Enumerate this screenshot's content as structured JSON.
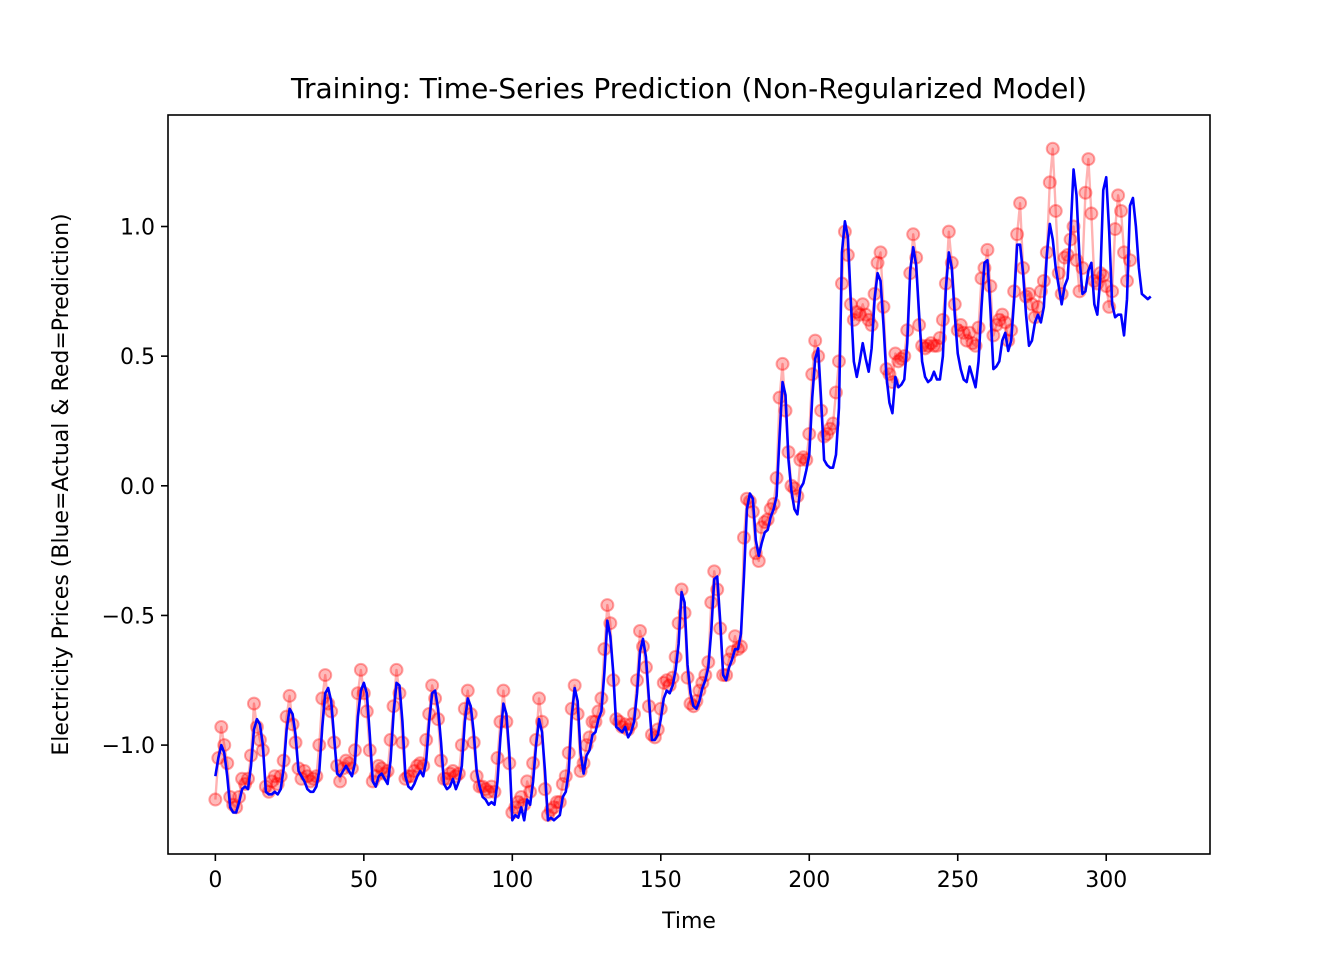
{
  "chart_data": {
    "type": "line",
    "title": "Training: Time-Series Prediction (Non-Regularized Model)",
    "xlabel": "Time",
    "ylabel": "Electricity Prices (Blue=Actual & Red=Prediction)",
    "xlim": [
      -15.95,
      334.95
    ],
    "ylim": [
      -1.42,
      1.43
    ],
    "xticks": [
      0,
      50,
      100,
      150,
      200,
      250,
      300
    ],
    "xtick_labels": [
      "0",
      "50",
      "100",
      "150",
      "200",
      "250",
      "300"
    ],
    "yticks": [
      -1.0,
      -0.5,
      0.0,
      0.5,
      1.0
    ],
    "ytick_labels": [
      "−1.0",
      "−0.5",
      "0.0",
      "0.5",
      "1.0"
    ],
    "grid": false,
    "series": [
      {
        "role": "actual",
        "style": "line",
        "color": "#0000ff",
        "x_start": 0,
        "values": [
          -1.12,
          -1.05,
          -1.0,
          -1.03,
          -1.12,
          -1.24,
          -1.26,
          -1.26,
          -1.22,
          -1.17,
          -1.16,
          -1.17,
          -1.08,
          -0.94,
          -0.9,
          -0.92,
          -1.0,
          -1.18,
          -1.19,
          -1.19,
          -1.18,
          -1.19,
          -1.17,
          -1.09,
          -0.94,
          -0.86,
          -0.88,
          -0.96,
          -1.1,
          -1.12,
          -1.14,
          -1.17,
          -1.18,
          -1.18,
          -1.16,
          -1.1,
          -0.93,
          -0.8,
          -0.78,
          -0.83,
          -0.97,
          -1.11,
          -1.12,
          -1.1,
          -1.08,
          -1.1,
          -1.12,
          -1.07,
          -0.89,
          -0.79,
          -0.76,
          -0.8,
          -0.96,
          -1.14,
          -1.16,
          -1.12,
          -1.11,
          -1.13,
          -1.15,
          -1.06,
          -0.88,
          -0.76,
          -0.77,
          -0.91,
          -1.12,
          -1.16,
          -1.17,
          -1.15,
          -1.12,
          -1.1,
          -1.12,
          -1.06,
          -0.91,
          -0.8,
          -0.79,
          -0.86,
          -0.99,
          -1.15,
          -1.17,
          -1.16,
          -1.13,
          -1.17,
          -1.14,
          -1.08,
          -0.91,
          -0.82,
          -0.85,
          -0.95,
          -1.1,
          -1.16,
          -1.2,
          -1.21,
          -1.23,
          -1.22,
          -1.23,
          -1.14,
          -0.97,
          -0.84,
          -0.88,
          -1.03,
          -1.29,
          -1.27,
          -1.28,
          -1.24,
          -1.29,
          -1.21,
          -1.23,
          -1.14,
          -1.0,
          -0.9,
          -0.95,
          -1.1,
          -1.29,
          -1.28,
          -1.29,
          -1.28,
          -1.27,
          -1.2,
          -1.18,
          -1.1,
          -0.89,
          -0.78,
          -0.83,
          -1.03,
          -1.11,
          -1.04,
          -1.02,
          -0.96,
          -0.95,
          -0.9,
          -0.87,
          -0.72,
          -0.52,
          -0.58,
          -0.72,
          -0.93,
          -0.94,
          -0.95,
          -0.93,
          -0.97,
          -0.95,
          -0.91,
          -0.8,
          -0.64,
          -0.59,
          -0.66,
          -0.82,
          -0.98,
          -0.98,
          -0.96,
          -0.9,
          -0.82,
          -0.79,
          -0.8,
          -0.77,
          -0.71,
          -0.61,
          -0.41,
          -0.45,
          -0.69,
          -0.8,
          -0.85,
          -0.86,
          -0.83,
          -0.78,
          -0.75,
          -0.7,
          -0.56,
          -0.36,
          -0.35,
          -0.52,
          -0.73,
          -0.75,
          -0.7,
          -0.67,
          -0.63,
          -0.63,
          -0.57,
          -0.35,
          -0.09,
          -0.03,
          -0.05,
          -0.21,
          -0.27,
          -0.22,
          -0.18,
          -0.17,
          -0.12,
          -0.09,
          -0.04,
          0.19,
          0.4,
          0.35,
          0.1,
          -0.02,
          -0.09,
          -0.11,
          -0.01,
          0.01,
          0.06,
          0.12,
          0.34,
          0.49,
          0.53,
          0.33,
          0.1,
          0.08,
          0.07,
          0.07,
          0.12,
          0.3,
          0.9,
          1.02,
          0.96,
          0.71,
          0.48,
          0.42,
          0.48,
          0.55,
          0.49,
          0.44,
          0.53,
          0.72,
          0.82,
          0.79,
          0.62,
          0.42,
          0.32,
          0.28,
          0.42,
          0.38,
          0.39,
          0.41,
          0.55,
          0.83,
          0.92,
          0.85,
          0.66,
          0.48,
          0.42,
          0.4,
          0.41,
          0.44,
          0.41,
          0.41,
          0.5,
          0.76,
          0.9,
          0.84,
          0.66,
          0.51,
          0.45,
          0.41,
          0.4,
          0.46,
          0.42,
          0.38,
          0.48,
          0.69,
          0.86,
          0.87,
          0.68,
          0.45,
          0.46,
          0.48,
          0.56,
          0.59,
          0.52,
          0.56,
          0.72,
          0.93,
          0.93,
          0.82,
          0.66,
          0.54,
          0.56,
          0.63,
          0.66,
          0.63,
          0.69,
          0.89,
          1.01,
          0.95,
          0.84,
          0.77,
          0.7,
          0.77,
          0.8,
          0.98,
          1.22,
          1.12,
          0.88,
          0.74,
          0.75,
          0.83,
          0.86,
          0.7,
          0.66,
          0.8,
          1.14,
          1.19,
          0.98,
          0.7,
          0.65,
          0.66,
          0.66,
          0.58,
          0.72,
          1.08,
          1.11,
          1.0,
          0.84,
          0.74,
          0.73,
          0.72,
          0.73
        ]
      },
      {
        "role": "prediction",
        "style": "markers",
        "color": "#ff0000",
        "alpha": 0.3,
        "x_start": 0,
        "values": [
          -1.21,
          -1.05,
          -0.93,
          -1.0,
          -1.07,
          -1.2,
          -1.23,
          -1.24,
          -1.2,
          -1.13,
          -1.15,
          -1.13,
          -1.04,
          -0.84,
          -0.93,
          -0.98,
          -1.02,
          -1.16,
          -1.18,
          -1.14,
          -1.12,
          -1.15,
          -1.12,
          -1.06,
          -0.89,
          -0.81,
          -0.92,
          -0.99,
          -1.09,
          -1.13,
          -1.1,
          -1.12,
          -1.14,
          -1.13,
          -1.12,
          -1.0,
          -0.82,
          -0.73,
          -0.84,
          -0.87,
          -0.99,
          -1.08,
          -1.14,
          -1.09,
          -1.06,
          -1.07,
          -1.09,
          -1.02,
          -0.8,
          -0.71,
          -0.8,
          -0.87,
          -1.02,
          -1.14,
          -1.12,
          -1.08,
          -1.09,
          -1.11,
          -1.1,
          -0.98,
          -0.85,
          -0.71,
          -0.8,
          -0.99,
          -1.13,
          -1.12,
          -1.12,
          -1.1,
          -1.08,
          -1.07,
          -1.08,
          -0.98,
          -0.88,
          -0.77,
          -0.82,
          -0.9,
          -1.06,
          -1.13,
          -1.13,
          -1.11,
          -1.1,
          -1.12,
          -1.11,
          -1.0,
          -0.86,
          -0.79,
          -0.88,
          -0.99,
          -1.12,
          -1.16,
          -1.16,
          -1.17,
          -1.18,
          -1.16,
          -1.18,
          -1.05,
          -0.91,
          -0.79,
          -0.91,
          -1.07,
          -1.26,
          -1.24,
          -1.22,
          -1.2,
          -1.23,
          -1.14,
          -1.18,
          -1.07,
          -0.98,
          -0.82,
          -0.91,
          -1.17,
          -1.27,
          -1.25,
          -1.24,
          -1.22,
          -1.22,
          -1.15,
          -1.12,
          -1.03,
          -0.86,
          -0.77,
          -0.88,
          -1.1,
          -1.07,
          -1.0,
          -0.97,
          -0.91,
          -0.91,
          -0.87,
          -0.82,
          -0.63,
          -0.46,
          -0.53,
          -0.75,
          -0.9,
          -0.91,
          -0.93,
          -0.92,
          -0.94,
          -0.92,
          -0.88,
          -0.75,
          -0.56,
          -0.62,
          -0.7,
          -0.85,
          -0.96,
          -0.97,
          -0.94,
          -0.86,
          -0.76,
          -0.75,
          -0.77,
          -0.74,
          -0.66,
          -0.53,
          -0.4,
          -0.49,
          -0.74,
          -0.84,
          -0.85,
          -0.83,
          -0.79,
          -0.76,
          -0.73,
          -0.68,
          -0.45,
          -0.33,
          -0.4,
          -0.55,
          -0.73,
          -0.73,
          -0.67,
          -0.64,
          -0.58,
          -0.63,
          -0.62,
          -0.2,
          -0.05,
          -0.06,
          -0.1,
          -0.26,
          -0.29,
          -0.16,
          -0.14,
          -0.13,
          -0.09,
          -0.07,
          0.03,
          0.34,
          0.47,
          0.29,
          0.13,
          0.0,
          -0.01,
          -0.04,
          0.1,
          0.11,
          0.1,
          0.2,
          0.43,
          0.56,
          0.5,
          0.29,
          0.19,
          0.2,
          0.22,
          0.24,
          0.36,
          0.48,
          0.78,
          0.98,
          0.89,
          0.7,
          0.64,
          0.67,
          0.66,
          0.7,
          0.66,
          0.64,
          0.62,
          0.74,
          0.86,
          0.9,
          0.69,
          0.45,
          0.43,
          0.4,
          0.51,
          0.48,
          0.49,
          0.5,
          0.6,
          0.82,
          0.97,
          0.88,
          0.62,
          0.54,
          0.53,
          0.54,
          0.55,
          0.54,
          0.54,
          0.57,
          0.64,
          0.78,
          0.98,
          0.86,
          0.7,
          0.6,
          0.62,
          0.59,
          0.56,
          0.59,
          0.55,
          0.54,
          0.61,
          0.8,
          0.84,
          0.91,
          0.77,
          0.58,
          0.62,
          0.64,
          0.66,
          0.63,
          0.56,
          0.6,
          0.75,
          0.97,
          1.09,
          0.84,
          0.73,
          0.74,
          0.7,
          0.65,
          0.69,
          0.75,
          0.79,
          0.9,
          1.17,
          1.3,
          1.06,
          0.82,
          0.74,
          0.88,
          0.89,
          0.95,
          1.0,
          0.87,
          0.75,
          0.84,
          1.13,
          1.26,
          1.05,
          0.79,
          0.78,
          0.82,
          0.81,
          0.77,
          0.69,
          0.75,
          0.99,
          1.12,
          1.06,
          0.9,
          0.79,
          0.87
        ]
      }
    ]
  }
}
